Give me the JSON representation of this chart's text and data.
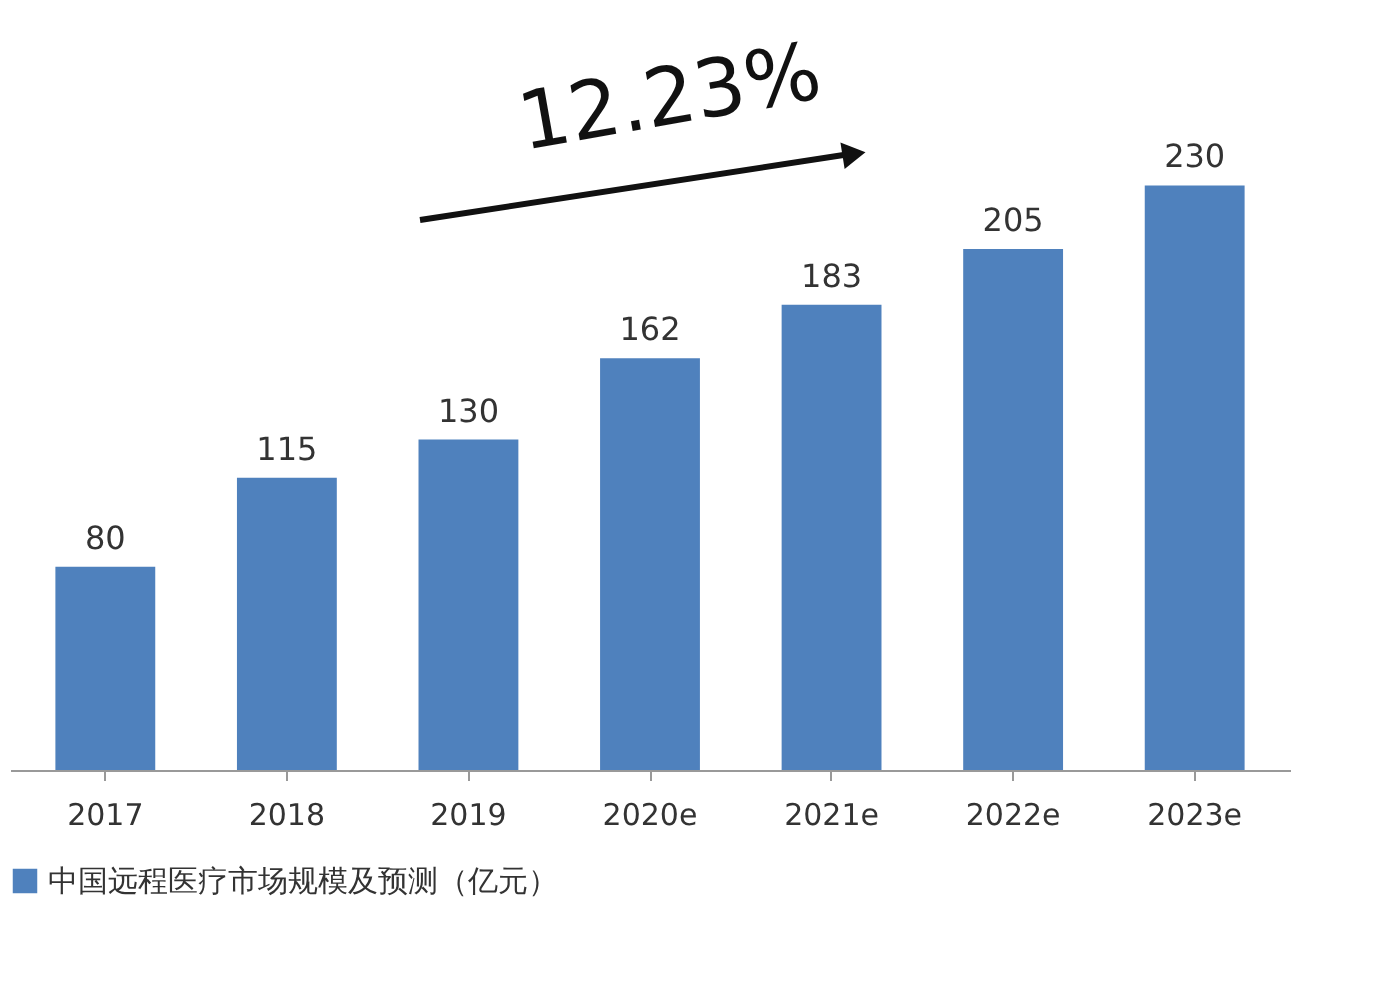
{
  "chart_data": {
    "type": "bar",
    "categories": [
      "2017",
      "2018",
      "2019",
      "2020e",
      "2021e",
      "2022e",
      "2023e"
    ],
    "series": [
      {
        "name": "中国远程医疗市场规模及预测（亿元）",
        "color": "#4f81bd",
        "values": [
          80,
          115,
          130,
          162,
          183,
          205,
          230
        ]
      }
    ],
    "data_labels": true,
    "legend": "bottom",
    "grid": false,
    "annotations": [
      "12.23%"
    ]
  }
}
